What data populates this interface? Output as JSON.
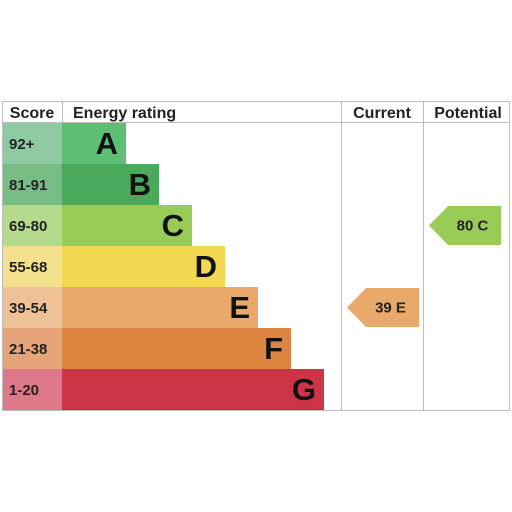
{
  "headers": {
    "score": "Score",
    "energy_rating": "Energy rating",
    "current": "Current",
    "potential": "Potential"
  },
  "chart_data": {
    "type": "bar",
    "title": "",
    "bands": [
      {
        "range": "92+",
        "letter": "A",
        "color": "#5cbf73",
        "score_color": "#8ecba3",
        "extent": 1
      },
      {
        "range": "81-91",
        "letter": "B",
        "color": "#4aa95a",
        "score_color": "#79bd86",
        "extent": 2
      },
      {
        "range": "69-80",
        "letter": "C",
        "color": "#99cc57",
        "score_color": "#b5d98d",
        "extent": 3
      },
      {
        "range": "55-68",
        "letter": "D",
        "color": "#f2d750",
        "score_color": "#f3e08c",
        "extent": 4
      },
      {
        "range": "39-54",
        "letter": "E",
        "color": "#e9a96b",
        "score_color": "#efc196",
        "extent": 5
      },
      {
        "range": "21-38",
        "letter": "F",
        "color": "#dc8440",
        "score_color": "#e6a579",
        "extent": 6
      },
      {
        "range": "1-20",
        "letter": "G",
        "color": "#cc3545",
        "score_color": "#dc7887",
        "extent": 7
      }
    ],
    "current": {
      "value": 39,
      "letter": "E",
      "label": "39 E",
      "color": "#e9a96b"
    },
    "potential": {
      "value": 80,
      "letter": "C",
      "label": "80 C",
      "color": "#99cc57"
    }
  }
}
